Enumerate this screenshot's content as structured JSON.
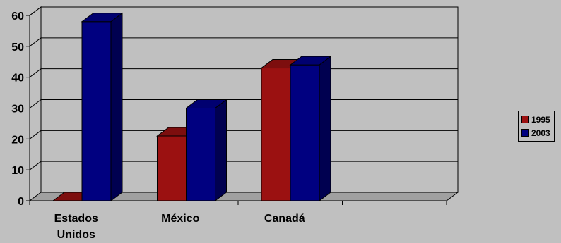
{
  "chart_data": {
    "type": "bar",
    "categories": [
      "Estados Unidos",
      "México",
      "Canadá",
      ""
    ],
    "category_lines": [
      [
        "Estados",
        "Unidos"
      ],
      [
        "México"
      ],
      [
        "Canadá"
      ],
      [
        ""
      ]
    ],
    "series": [
      {
        "name": "1995",
        "values": [
          0,
          21,
          43,
          null
        ],
        "color": "#9b1111",
        "color_top": "#7d0e0e",
        "color_side": "#5e0a0a"
      },
      {
        "name": "2003",
        "values": [
          58,
          30,
          44,
          null
        ],
        "color": "#000080",
        "color_top": "#000070",
        "color_side": "#000050"
      }
    ],
    "ylim": [
      0,
      60
    ],
    "yticks": [
      0,
      10,
      20,
      30,
      40,
      50,
      60
    ],
    "title": "",
    "xlabel": "",
    "ylabel": "",
    "grid": true,
    "legend_position": "right",
    "colors": {
      "background": "#c0c0c0",
      "plot_wall": "#c0c0c0",
      "floor": "#a0a0a0",
      "grid": "#000000"
    }
  }
}
